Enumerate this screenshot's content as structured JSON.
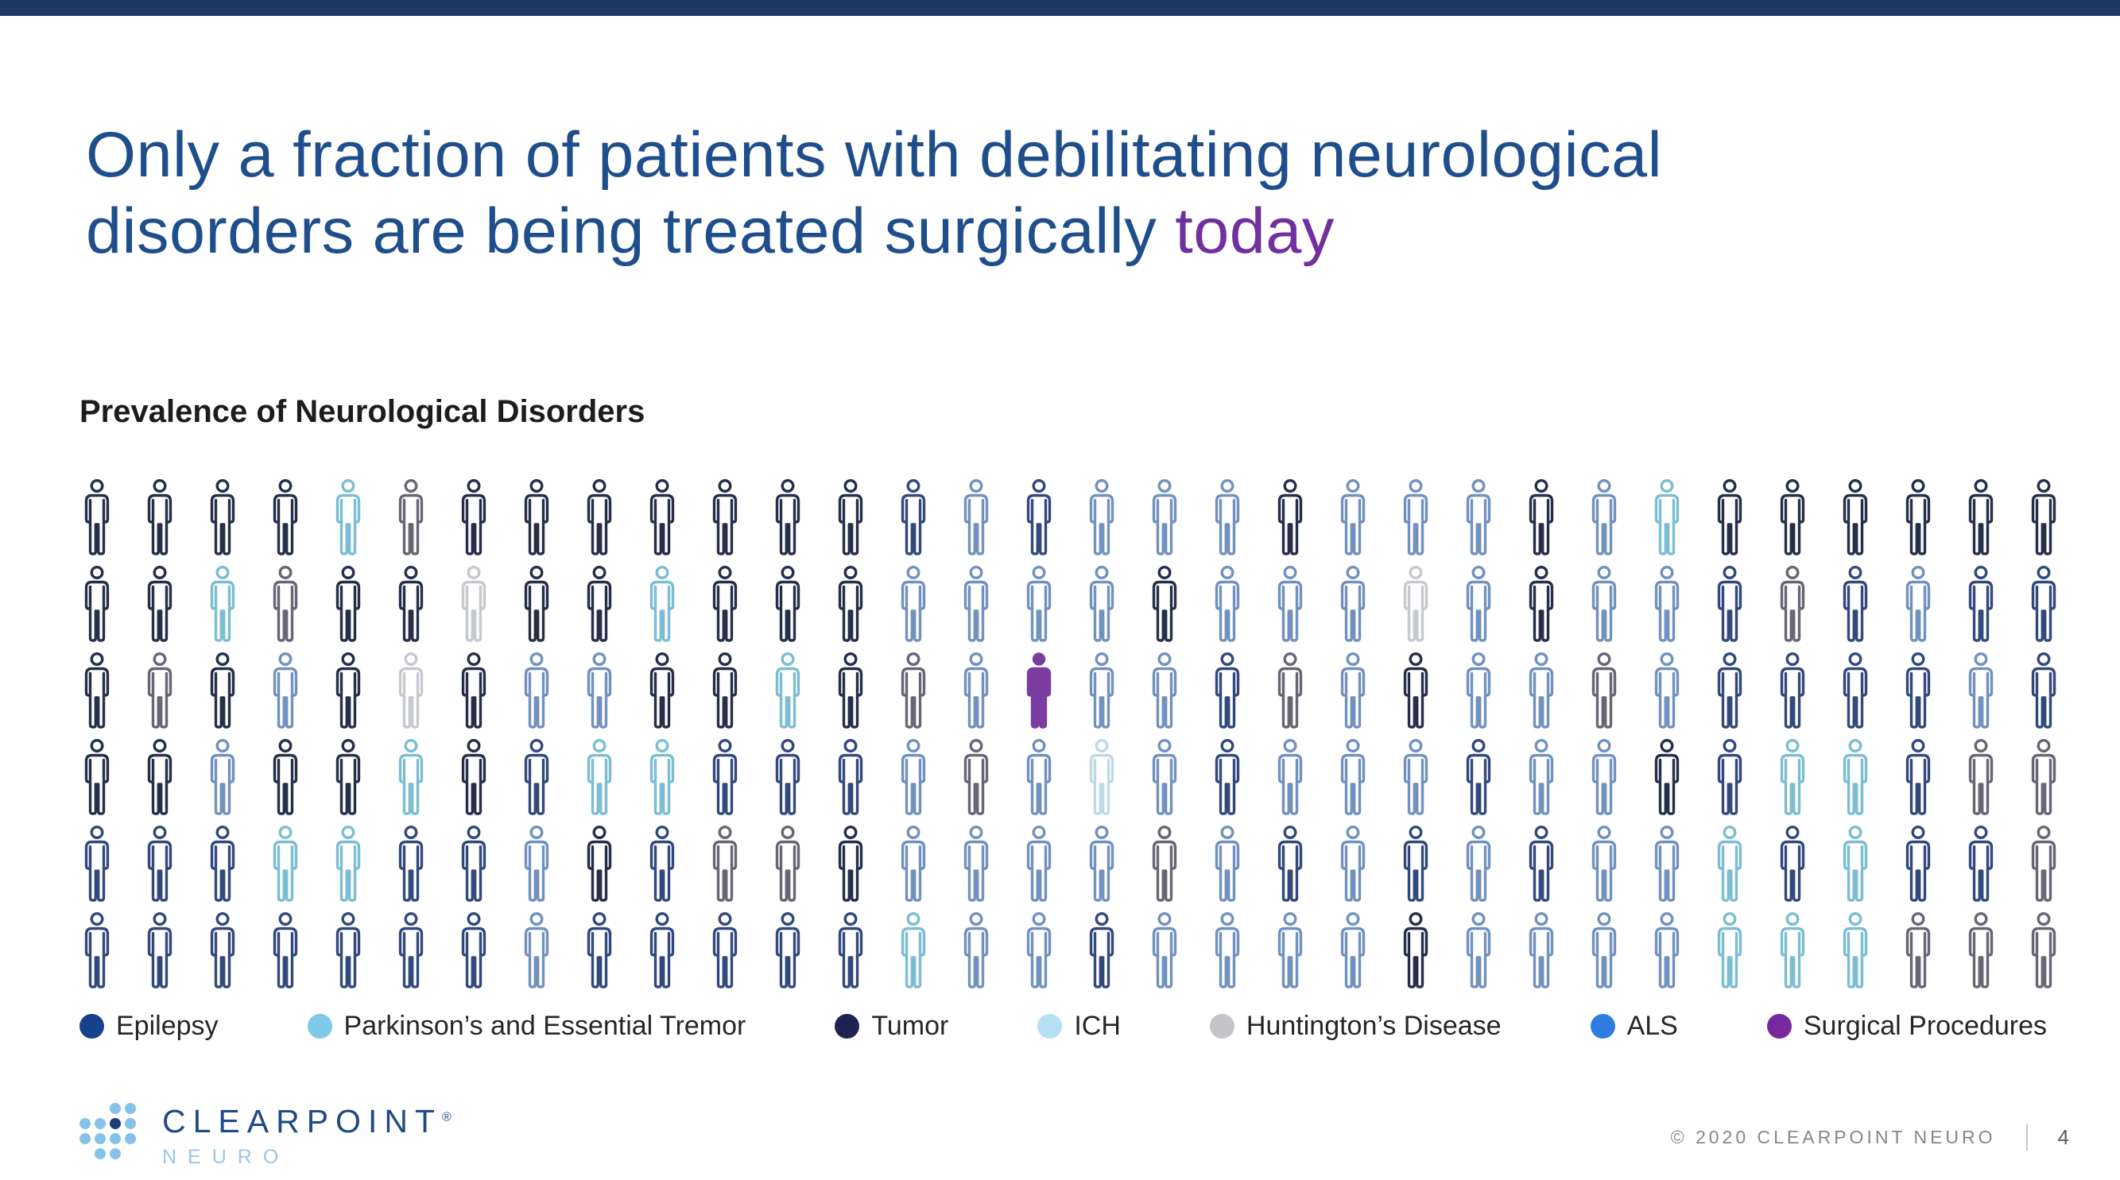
{
  "slide": {
    "topbar_color": "#1F3864",
    "title": {
      "line1": "Only a fraction of patients with debilitating neurological",
      "line2": "disorders are being treated surgically ",
      "highlight": "today",
      "title_color": "#1F4E8C",
      "highlight_color": "#7030A0"
    }
  },
  "chart_data": {
    "type": "pictogram",
    "title": "Prevalence of Neurological Disorders",
    "rows": 6,
    "columns": 32,
    "total_icons": 192,
    "legend": [
      {
        "label": "Epilepsy",
        "color": "#16418C"
      },
      {
        "label": "Parkinson’s and Essential Tremor",
        "color": "#7EC8E8"
      },
      {
        "label": "Tumor",
        "color": "#1F2152"
      },
      {
        "label": "ICH",
        "color": "#B5E0F5"
      },
      {
        "label": "Huntington’s Disease",
        "color": "#C4C5C9"
      },
      {
        "label": "ALS",
        "color": "#2F7CE0"
      },
      {
        "label": "Surgical Procedures",
        "color": "#7628A1"
      }
    ],
    "palette": {
      "dk": "#262E49",
      "md": "#32497B",
      "sl": "#7191BE",
      "pk": "#7CBDD3",
      "ich": "#BFD9E4",
      "gy": "#C6C9CE",
      "dg": "#666772",
      "pu": "#7B3DA0"
    },
    "color_counts": {
      "dk": 47,
      "md": 45,
      "sl": 60,
      "pk": 18,
      "gy": 3,
      "dg": 17,
      "ich": 1,
      "pu": 1
    },
    "grid": [
      [
        "dk",
        "dk",
        "dk",
        "dk",
        "pk",
        "dg",
        "dk",
        "dk",
        "dk",
        "dk",
        "dk",
        "dk",
        "dk",
        "md",
        "sl",
        "md",
        "sl",
        "sl",
        "sl",
        "dk",
        "sl",
        "sl",
        "sl",
        "dk",
        "sl",
        "pk",
        "dk",
        "dk",
        "dk",
        "dk",
        "dk",
        "dk"
      ],
      [
        "dk",
        "dk",
        "pk",
        "dg",
        "dk",
        "dk",
        "gy",
        "dk",
        "dk",
        "pk",
        "dk",
        "dk",
        "dk",
        "sl",
        "sl",
        "sl",
        "sl",
        "dk",
        "sl",
        "sl",
        "sl",
        "gy",
        "sl",
        "dk",
        "sl",
        "sl",
        "md",
        "dg",
        "md",
        "sl",
        "md",
        "md"
      ],
      [
        "dk",
        "dg",
        "dk",
        "sl",
        "dk",
        "gy",
        "dk",
        "sl",
        "sl",
        "dk",
        "dk",
        "pk",
        "dk",
        "dg",
        "sl",
        "pu",
        "sl",
        "sl",
        "md",
        "dg",
        "sl",
        "dk",
        "sl",
        "sl",
        "dg",
        "sl",
        "md",
        "md",
        "md",
        "md",
        "sl",
        "md"
      ],
      [
        "dk",
        "dk",
        "sl",
        "dk",
        "dk",
        "pk",
        "dk",
        "md",
        "pk",
        "pk",
        "md",
        "md",
        "md",
        "sl",
        "dg",
        "sl",
        "ich",
        "sl",
        "md",
        "sl",
        "sl",
        "sl",
        "md",
        "sl",
        "sl",
        "dk",
        "md",
        "pk",
        "pk",
        "md",
        "dg",
        "dg"
      ],
      [
        "md",
        "md",
        "md",
        "pk",
        "pk",
        "md",
        "md",
        "sl",
        "dk",
        "md",
        "dg",
        "dg",
        "dk",
        "sl",
        "sl",
        "sl",
        "sl",
        "dg",
        "sl",
        "md",
        "sl",
        "md",
        "sl",
        "md",
        "sl",
        "sl",
        "pk",
        "md",
        "pk",
        "md",
        "md",
        "dg"
      ],
      [
        "md",
        "md",
        "md",
        "md",
        "md",
        "md",
        "md",
        "sl",
        "md",
        "md",
        "md",
        "md",
        "md",
        "pk",
        "sl",
        "sl",
        "md",
        "sl",
        "sl",
        "sl",
        "sl",
        "dk",
        "sl",
        "sl",
        "sl",
        "sl",
        "pk",
        "pk",
        "pk",
        "dg",
        "dg",
        "dg"
      ]
    ]
  },
  "footer": {
    "logo": {
      "name": "CLEARPOINT",
      "reg": "®",
      "sub": "NEURO",
      "name_color": "#1E4A86",
      "sub_color": "#9CC6E6",
      "dot_light": "#85C2E8",
      "dot_dark": "#1D3E7E"
    },
    "copyright": "© 2020 CLEARPOINT NEURO",
    "page_number": "4"
  }
}
